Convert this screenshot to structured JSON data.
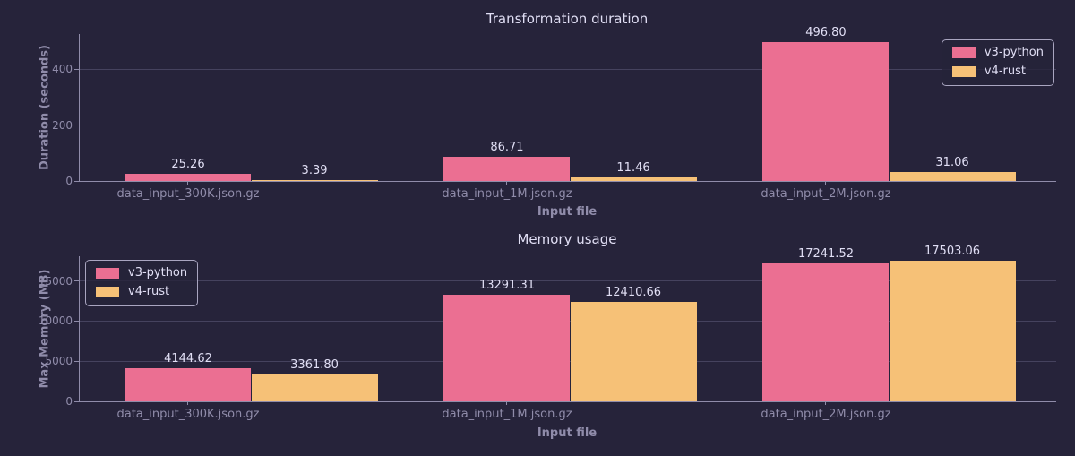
{
  "theme": {
    "background": "#26233a",
    "text": "#e0def4",
    "muted": "#908caa",
    "gridline": "#45425e",
    "legend_border": "#a9a5c0",
    "series_colors": {
      "v3-python": "#eb6f92",
      "v4-rust": "#f6c177"
    }
  },
  "chart_data": [
    {
      "type": "bar",
      "title": "Transformation duration",
      "xlabel": "Input file",
      "ylabel": "Duration (seconds)",
      "categories": [
        "data_input_300K.json.gz",
        "data_input_1M.json.gz",
        "data_input_2M.json.gz"
      ],
      "series": [
        {
          "name": "v3-python",
          "color": "#eb6f92",
          "values": [
            25.26,
            86.71,
            496.8
          ]
        },
        {
          "name": "v4-rust",
          "color": "#f6c177",
          "values": [
            3.39,
            11.46,
            31.06
          ]
        }
      ],
      "ylim": [
        0,
        525
      ],
      "yticks": [
        0,
        200,
        400
      ],
      "grid": true,
      "legend_position": "top-right",
      "value_label_decimals": 2
    },
    {
      "type": "bar",
      "title": "Memory usage",
      "xlabel": "Input file",
      "ylabel": "Max Memory (MB)",
      "categories": [
        "data_input_300K.json.gz",
        "data_input_1M.json.gz",
        "data_input_2M.json.gz"
      ],
      "series": [
        {
          "name": "v3-python",
          "color": "#eb6f92",
          "values": [
            4144.62,
            13291.31,
            17241.52
          ]
        },
        {
          "name": "v4-rust",
          "color": "#f6c177",
          "values": [
            3361.8,
            12410.66,
            17503.06
          ]
        }
      ],
      "ylim": [
        0,
        18100
      ],
      "yticks": [
        0,
        5000,
        10000,
        15000
      ],
      "grid": true,
      "legend_position": "top-left",
      "value_label_decimals": 2
    }
  ]
}
